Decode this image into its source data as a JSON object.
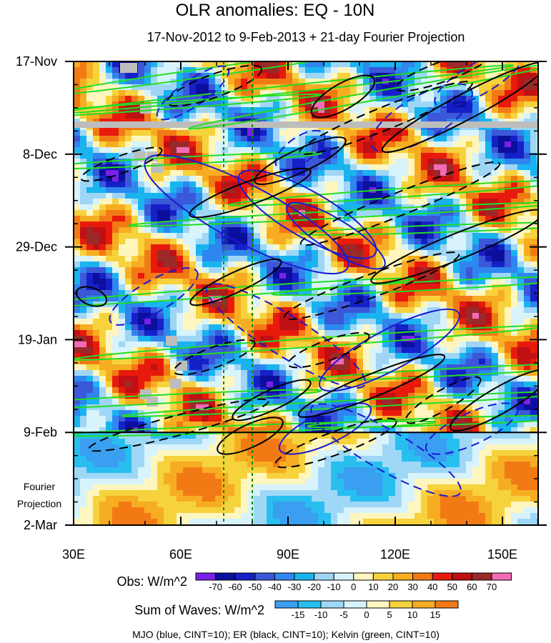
{
  "chart_data": {
    "type": "heatmap",
    "title": "OLR anomalies: EQ - 10N",
    "subtitle": "17-Nov-2012 to 9-Feb-2013 + 21-day Fourier Projection",
    "x_range": [
      30,
      160
    ],
    "x_ticks": [
      {
        "value": 30,
        "label": "30E"
      },
      {
        "value": 60,
        "label": "60E"
      },
      {
        "value": 90,
        "label": "90E"
      },
      {
        "value": 120,
        "label": "120E"
      },
      {
        "value": 150,
        "label": "150E"
      }
    ],
    "y_range_days": [
      0,
      105
    ],
    "y_ticks": [
      {
        "day": 0,
        "label": "17-Nov"
      },
      {
        "day": 21,
        "label": "8-Dec"
      },
      {
        "day": 42,
        "label": "29-Dec"
      },
      {
        "day": 63,
        "label": "19-Jan"
      },
      {
        "day": 84,
        "label": "9-Feb"
      },
      {
        "day": 105,
        "label": "2-Mar"
      }
    ],
    "projection_start_day": 84,
    "projection_label": [
      "Fourier",
      "Projection"
    ],
    "reference_lines_lon": [
      72,
      80
    ],
    "obs_colorbar": {
      "label": "Obs: W/m^2",
      "levels": [
        -70,
        -60,
        -50,
        -40,
        -30,
        -20,
        -10,
        0,
        10,
        20,
        30,
        40,
        50,
        60,
        70
      ],
      "colors": [
        "#7a1fe6",
        "#0b0f9c",
        "#1620c8",
        "#3a58d8",
        "#2f86ee",
        "#19b4ef",
        "#9fd6f6",
        "#d8f3fb",
        "#fff6bf",
        "#f6d23d",
        "#f6ad22",
        "#f27a15",
        "#e81a0c",
        "#bf1014",
        "#9a2a2a",
        "#f26bb6"
      ]
    },
    "waves_colorbar": {
      "label": "Sum of Waves: W/m^2",
      "levels": [
        -15,
        -10,
        -5,
        0,
        5,
        10,
        15
      ],
      "colors": [
        "#3a9ff0",
        "#28bff0",
        "#9fd8f6",
        "#d8f3fb",
        "#fff6bf",
        "#f6d23d",
        "#f6ad22",
        "#f27a15"
      ]
    },
    "contour_legend": "MJO (blue, CINT=10); ER (black, CINT=10); Kelvin (green, CINT=10)",
    "series": [
      {
        "name": "MJO",
        "color": "#1a1ad2"
      },
      {
        "name": "ER",
        "color": "#000000"
      },
      {
        "name": "Kelvin",
        "color": "#22dd22"
      }
    ]
  }
}
